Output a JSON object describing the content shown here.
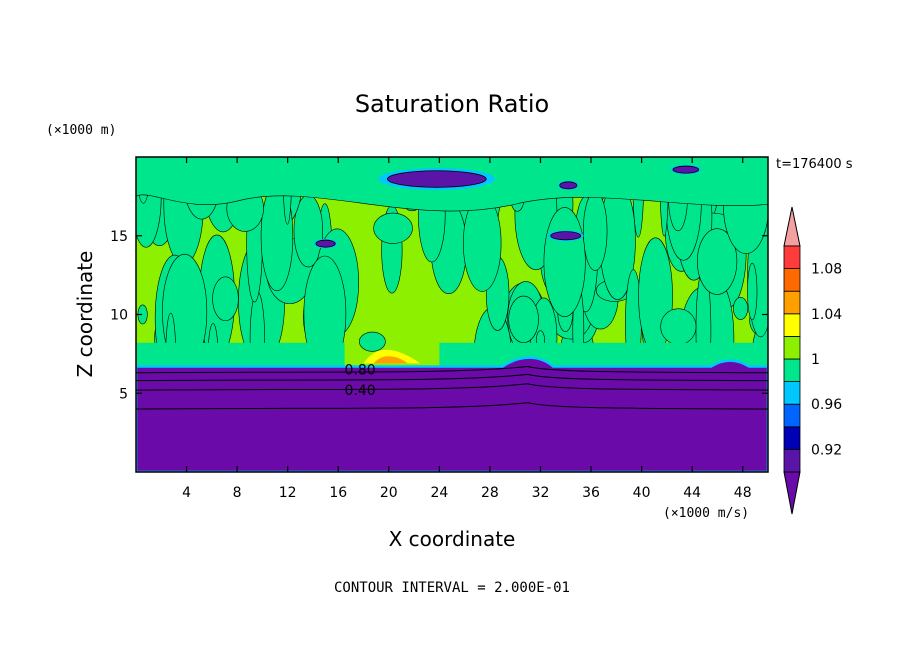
{
  "chart_data": {
    "type": "heatmap",
    "title": "Saturation Ratio",
    "xlabel": "X coordinate",
    "ylabel": "Z coordinate",
    "x_unit": "(×1000 m/s)",
    "y_unit": "(×1000 m)",
    "time_label": "t=176400 s",
    "footer": "CONTOUR INTERVAL = 2.000E-01",
    "xlim": [
      0,
      50
    ],
    "ylim": [
      0,
      20
    ],
    "x_ticks": [
      4,
      8,
      12,
      16,
      20,
      24,
      28,
      32,
      36,
      40,
      44,
      48
    ],
    "y_ticks": [
      5,
      10,
      15
    ],
    "contour_labels": [
      {
        "text": "0.80",
        "x": 16.5,
        "y": 6.5
      },
      {
        "text": "0.40",
        "x": 16.5,
        "y": 5.2
      }
    ],
    "colorbar": {
      "levels": [
        0.9,
        0.92,
        0.94,
        0.96,
        0.98,
        1.0,
        1.02,
        1.04,
        1.06,
        1.08,
        1.1
      ],
      "labels": [
        "0.92",
        "0.96",
        "1",
        "1.04",
        "1.08"
      ],
      "colors": [
        "#5a14a8",
        "#0000b4",
        "#0064ff",
        "#00c8ff",
        "#00e68c",
        "#8cf000",
        "#ffff00",
        "#ffa000",
        "#ff6a00",
        "#ff3c3c"
      ],
      "under_color": "#6a0aa8",
      "over_color": "#f4a0a0"
    },
    "regions": {
      "subsaturated_top_z": 6.7,
      "background_color": "#8cf000",
      "lower_color": "#6a0aa8",
      "moist_patch_color": "#00e68c",
      "dry_patch_color": "#5a14a8"
    }
  }
}
